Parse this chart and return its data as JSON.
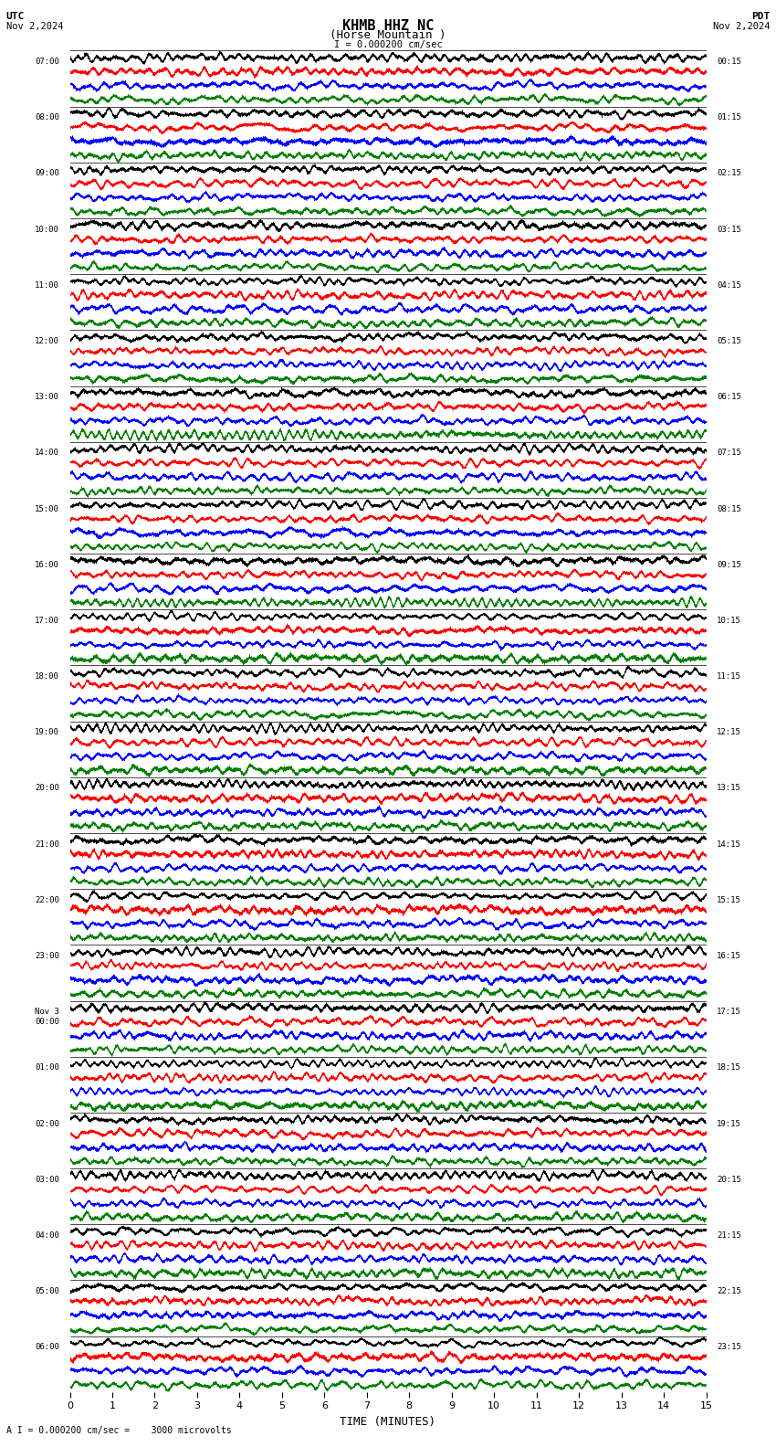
{
  "title_line1": "KHMB HHZ NC",
  "title_line2": "(Horse Mountain )",
  "scale_label": "I = 0.000200 cm/sec",
  "utc_label": "UTC",
  "date_left": "Nov 2,2024",
  "pdt_label": "PDT",
  "date_right": "Nov 2,2024",
  "bottom_label": "TIME (MINUTES)",
  "bottom_scale": "A I = 0.000200 cm/sec =    3000 microvolts",
  "left_times": [
    "07:00",
    "08:00",
    "09:00",
    "10:00",
    "11:00",
    "12:00",
    "13:00",
    "14:00",
    "15:00",
    "16:00",
    "17:00",
    "18:00",
    "19:00",
    "20:00",
    "21:00",
    "22:00",
    "23:00",
    "Nov 3\n00:00",
    "01:00",
    "02:00",
    "03:00",
    "04:00",
    "05:00",
    "06:00"
  ],
  "right_times": [
    "00:15",
    "01:15",
    "02:15",
    "03:15",
    "04:15",
    "05:15",
    "06:15",
    "07:15",
    "08:15",
    "09:15",
    "10:15",
    "11:15",
    "12:15",
    "13:15",
    "14:15",
    "15:15",
    "16:15",
    "17:15",
    "18:15",
    "19:15",
    "20:15",
    "21:15",
    "22:15",
    "23:15"
  ],
  "n_rows": 24,
  "traces_per_row": 4,
  "colors": [
    "black",
    "red",
    "blue",
    "green"
  ],
  "x_min": 0,
  "x_max": 15,
  "x_ticks": [
    0,
    1,
    2,
    3,
    4,
    5,
    6,
    7,
    8,
    9,
    10,
    11,
    12,
    13,
    14,
    15
  ],
  "bg_color": "white",
  "line_width": 0.4,
  "seed": 42
}
